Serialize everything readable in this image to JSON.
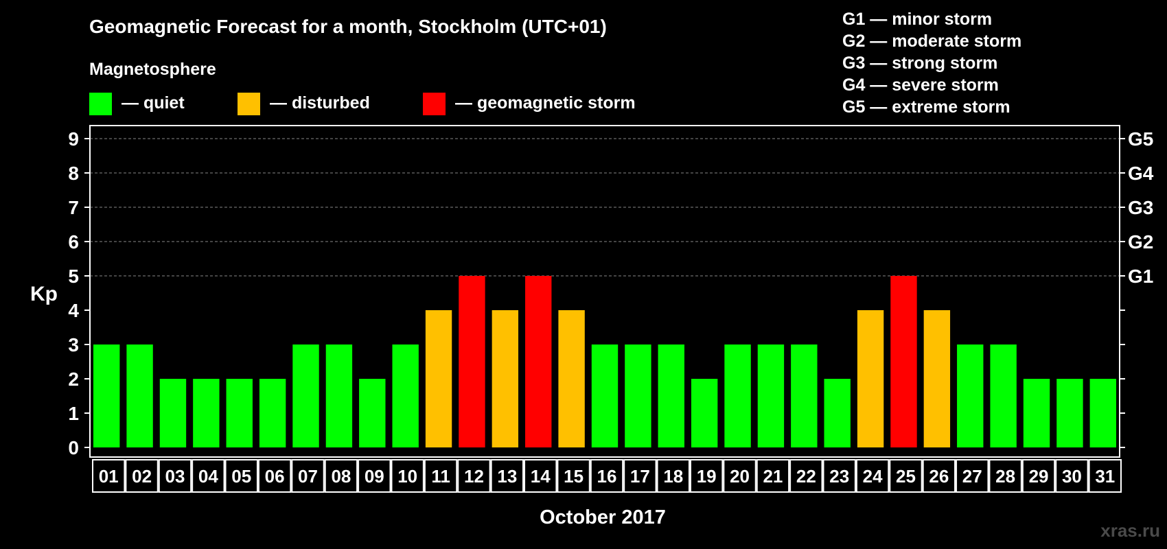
{
  "header": {
    "title": "Geomagnetic Forecast for a month, Stockholm (UTC+01)",
    "legend_heading": "Magnetosphere",
    "watermark": "xras.ru"
  },
  "legend": [
    {
      "label": "— quiet",
      "color": "#00ff00"
    },
    {
      "label": "— disturbed",
      "color": "#ffc000"
    },
    {
      "label": "— geomagnetic storm",
      "color": "#ff0000"
    }
  ],
  "storm_scale": [
    "G1 — minor storm",
    "G2 — moderate storm",
    "G3 — strong storm",
    "G4 — severe storm",
    "G5 — extreme storm"
  ],
  "colors": {
    "quiet": "#00ff00",
    "disturbed": "#ffc000",
    "storm": "#ff0000",
    "background": "#000000",
    "grid": "#888888",
    "axis": "#ffffff"
  },
  "chart_data": {
    "type": "bar",
    "title": "Geomagnetic Forecast for a month, Stockholm (UTC+01)",
    "xlabel": "October 2017",
    "ylabel": "Kp",
    "ylim": [
      0,
      9
    ],
    "yticks": [
      0,
      1,
      2,
      3,
      4,
      5,
      6,
      7,
      8,
      9
    ],
    "right_ticks": [
      {
        "value": 5,
        "label": "G1"
      },
      {
        "value": 6,
        "label": "G2"
      },
      {
        "value": 7,
        "label": "G3"
      },
      {
        "value": 8,
        "label": "G4"
      },
      {
        "value": 9,
        "label": "G5"
      }
    ],
    "grid": "dashed at Kp 5-9",
    "categories": [
      "01",
      "02",
      "03",
      "04",
      "05",
      "06",
      "07",
      "08",
      "09",
      "10",
      "11",
      "12",
      "13",
      "14",
      "15",
      "16",
      "17",
      "18",
      "19",
      "20",
      "21",
      "22",
      "23",
      "24",
      "25",
      "26",
      "27",
      "28",
      "29",
      "30",
      "31"
    ],
    "values": [
      3,
      3,
      2,
      2,
      2,
      2,
      3,
      3,
      2,
      3,
      4,
      5,
      4,
      5,
      4,
      3,
      3,
      3,
      2,
      3,
      3,
      3,
      2,
      4,
      5,
      4,
      3,
      3,
      2,
      2,
      2
    ],
    "status": [
      "quiet",
      "quiet",
      "quiet",
      "quiet",
      "quiet",
      "quiet",
      "quiet",
      "quiet",
      "quiet",
      "quiet",
      "disturbed",
      "storm",
      "disturbed",
      "storm",
      "disturbed",
      "quiet",
      "quiet",
      "quiet",
      "quiet",
      "quiet",
      "quiet",
      "quiet",
      "quiet",
      "disturbed",
      "storm",
      "disturbed",
      "quiet",
      "quiet",
      "quiet",
      "quiet",
      "quiet"
    ]
  }
}
